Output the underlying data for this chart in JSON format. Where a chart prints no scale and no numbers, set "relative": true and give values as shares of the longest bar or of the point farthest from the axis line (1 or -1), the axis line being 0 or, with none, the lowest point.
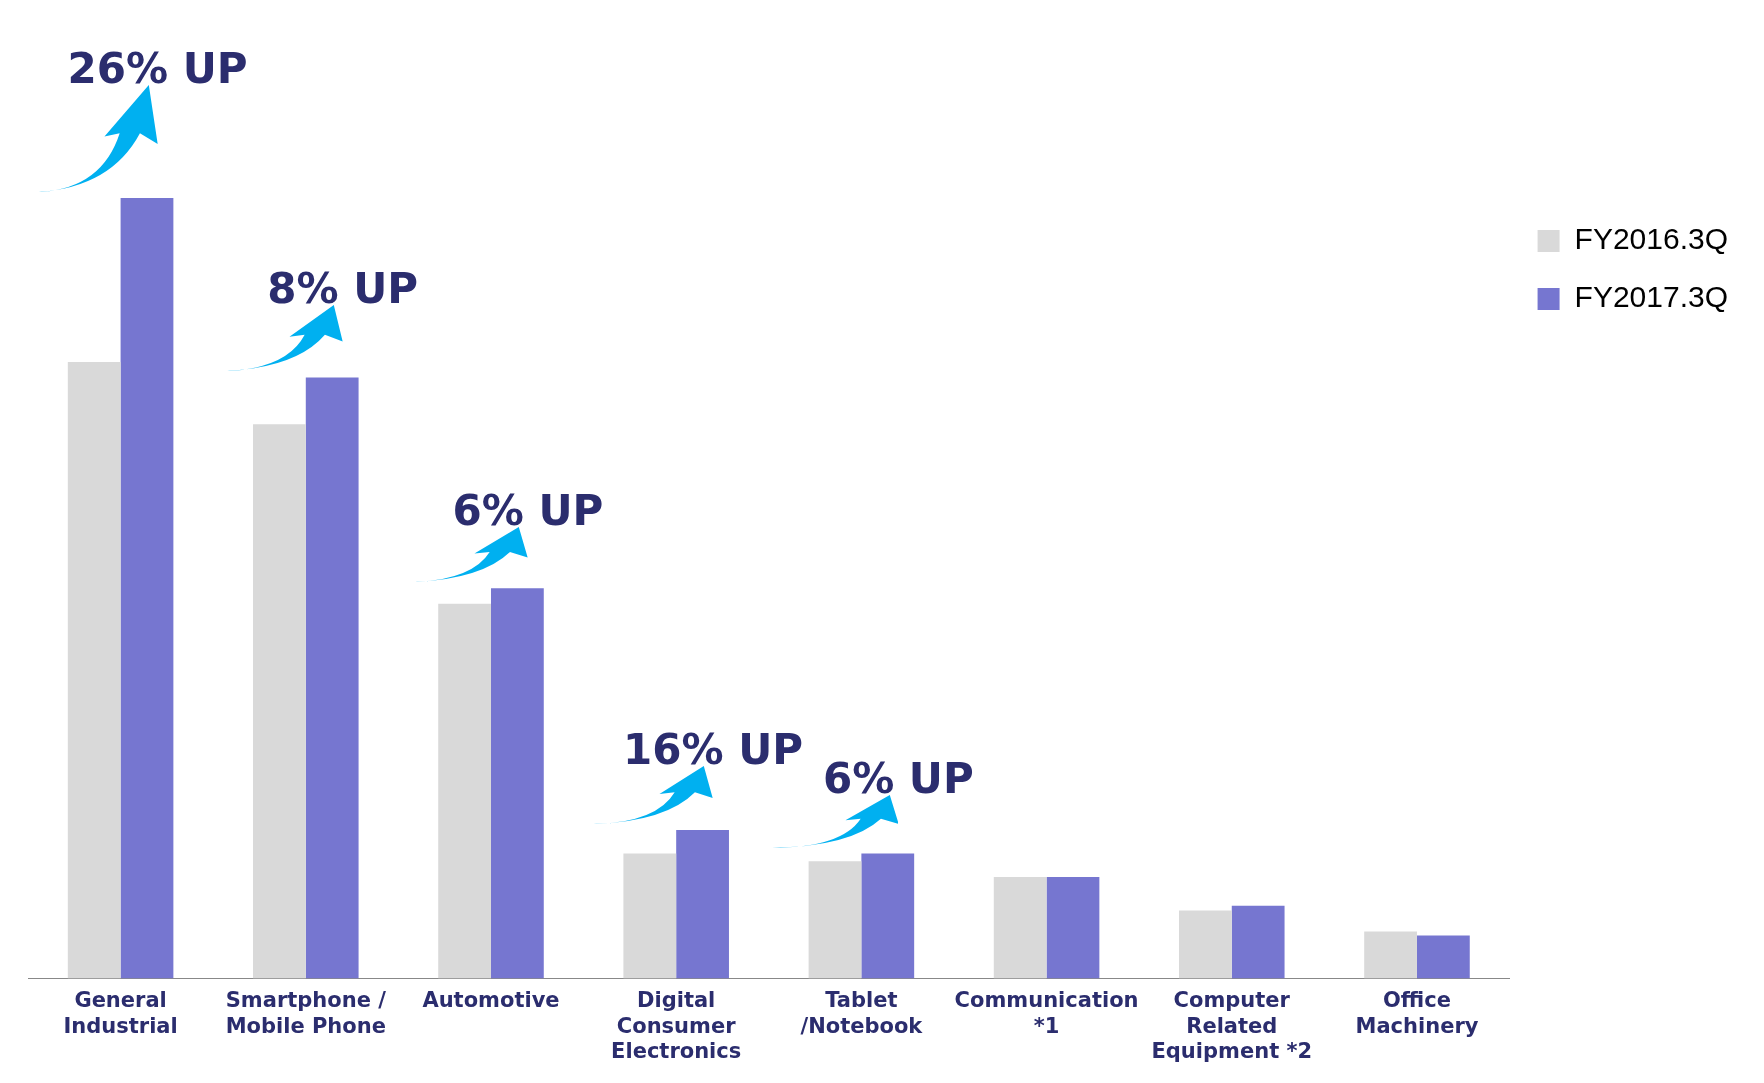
{
  "chart_data": {
    "type": "bar",
    "relative": true,
    "categories": [
      "General Industrial",
      "Smartphone / Mobile Phone",
      "Automotive",
      "Digital Consumer Electronics",
      "Tablet /Notebook",
      "Communication *1",
      "Computer Related Equipment *2",
      "Office Machinery"
    ],
    "series": [
      {
        "name": "FY2016.3Q",
        "color": "#d9d9d9",
        "values": [
          0.79,
          0.71,
          0.48,
          0.16,
          0.15,
          0.13,
          0.087,
          0.06
        ]
      },
      {
        "name": "FY2017.3Q",
        "color": "#7676d0",
        "values": [
          1,
          0.77,
          0.5,
          0.19,
          0.16,
          0.13,
          0.093,
          0.055
        ]
      }
    ],
    "annotations": [
      {
        "text": "26% UP",
        "x": "General Industrial",
        "y": 1
      },
      {
        "text": "8% UP",
        "x": "Smartphone / Mobile Phone",
        "y": 0.77
      },
      {
        "text": "6% UP",
        "x": "Automotive",
        "y": 0.5
      },
      {
        "text": "16% UP",
        "x": "Digital Consumer Electronics",
        "y": 0.19
      },
      {
        "text": "6% UP",
        "x": "Tablet /Notebook",
        "y": 0.16
      }
    ],
    "legend": "top right",
    "grid": false,
    "tick_labels": "x"
  }
}
